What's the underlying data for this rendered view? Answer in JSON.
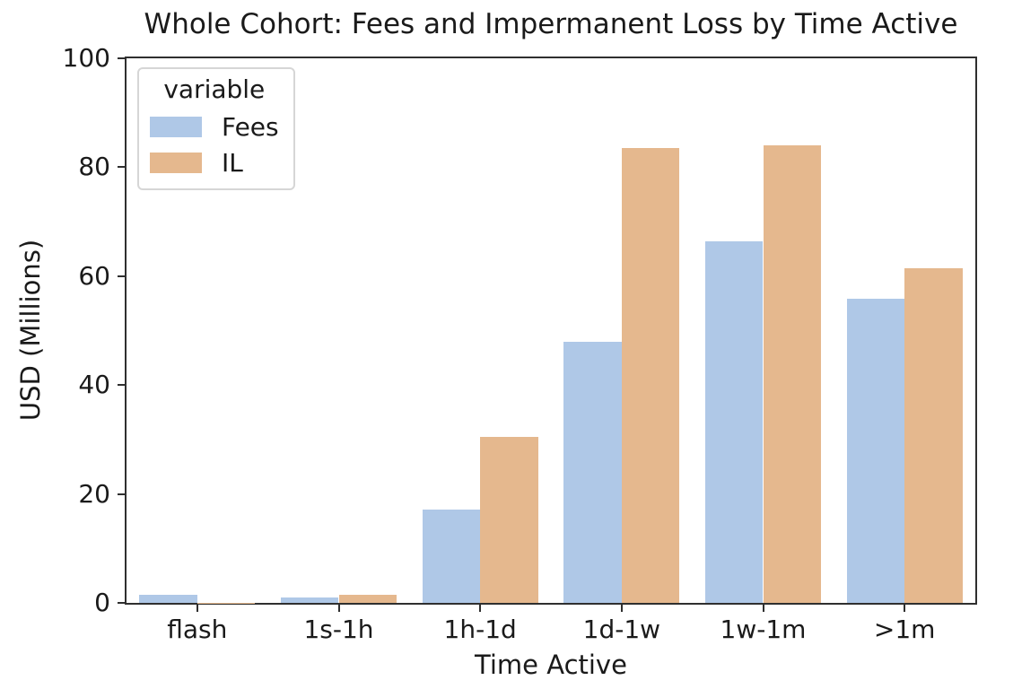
{
  "chart_data": {
    "type": "bar",
    "title": "Whole Cohort: Fees and Impermanent Loss by Time Active",
    "xlabel": "Time Active",
    "ylabel": "USD (Millions)",
    "categories": [
      "flash",
      "1s-1h",
      "1h-1d",
      "1d-1w",
      "1w-1m",
      ">1m"
    ],
    "series": [
      {
        "name": "Fees",
        "color": "#afc8e7",
        "values": [
          1.5,
          1.0,
          17.2,
          48.0,
          66.4,
          55.8
        ]
      },
      {
        "name": "IL",
        "color": "#e5b88e",
        "values": [
          0.05,
          1.5,
          30.5,
          83.6,
          84.1,
          61.4
        ]
      }
    ],
    "ylim": [
      0,
      100
    ],
    "yticks": [
      0,
      20,
      40,
      60,
      80,
      100
    ],
    "grid": false,
    "legend": {
      "title": "variable",
      "position": "upper-left"
    },
    "colors": {
      "spine": "#2f2f2f",
      "text": "#1a1a1a",
      "background": "#ffffff"
    }
  }
}
